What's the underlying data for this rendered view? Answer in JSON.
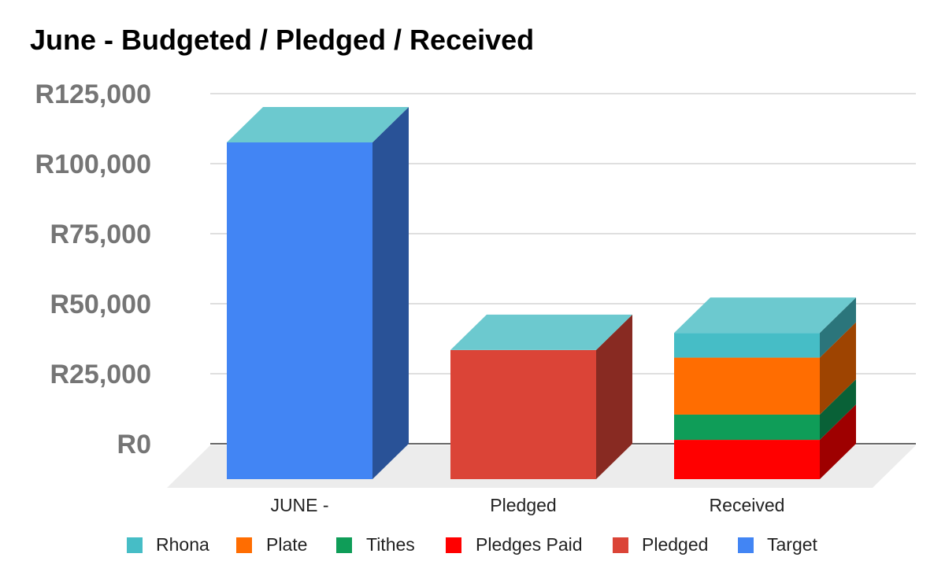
{
  "chart_data": {
    "type": "bar",
    "title": "June - Budgeted / Pledged / Received",
    "stacked": true,
    "three_d": true,
    "categories": [
      "JUNE -",
      "Pledged",
      "Received"
    ],
    "series": [
      {
        "name": "Rhona",
        "color": "#46BDC6",
        "values": [
          0,
          0,
          8800
        ]
      },
      {
        "name": "Plate",
        "color": "#FF6D01",
        "values": [
          0,
          0,
          20300
        ]
      },
      {
        "name": "Tithes",
        "color": "#0F9D58",
        "values": [
          0,
          0,
          9000
        ]
      },
      {
        "name": "Pledges Paid",
        "color": "#FF0000",
        "values": [
          0,
          0,
          14000
        ]
      },
      {
        "name": "Pledged",
        "color": "#DB4437",
        "values": [
          0,
          46000,
          0
        ]
      },
      {
        "name": "Target",
        "color": "#4285F4",
        "values": [
          120000,
          0,
          0
        ]
      }
    ],
    "stack_order_bottom_to_top": [
      "Pledges Paid",
      "Tithes",
      "Plate",
      "Rhona",
      "Pledged",
      "Target"
    ],
    "y_ticks": [
      "R0",
      "R25,000",
      "R50,000",
      "R75,000",
      "R100,000",
      "R125,000"
    ],
    "ylim": [
      0,
      125000
    ],
    "xlabel": "",
    "ylabel": "",
    "grid": true,
    "legend_position": "bottom",
    "top_face_color": "#6CC9CF"
  }
}
